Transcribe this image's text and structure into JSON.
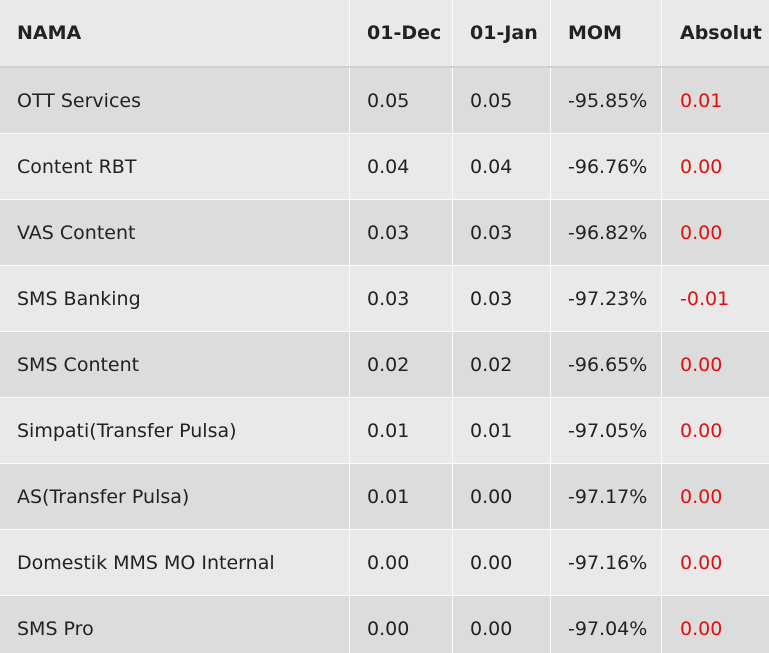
{
  "table": {
    "headers": [
      "NAMA",
      "01-Dec",
      "01-Jan",
      "MOM",
      "Absolut"
    ],
    "rows": [
      {
        "nama": "OTT Services",
        "dec": "0.05",
        "jan": "0.05",
        "mom": "-95.85%",
        "absolut": "0.01"
      },
      {
        "nama": "Content RBT",
        "dec": "0.04",
        "jan": "0.04",
        "mom": "-96.76%",
        "absolut": "0.00"
      },
      {
        "nama": "VAS Content",
        "dec": "0.03",
        "jan": "0.03",
        "mom": "-96.82%",
        "absolut": "0.00"
      },
      {
        "nama": "SMS Banking",
        "dec": "0.03",
        "jan": "0.03",
        "mom": "-97.23%",
        "absolut": "-0.01"
      },
      {
        "nama": "SMS Content",
        "dec": "0.02",
        "jan": "0.02",
        "mom": "-96.65%",
        "absolut": "0.00"
      },
      {
        "nama": "Simpati(Transfer Pulsa)",
        "dec": "0.01",
        "jan": "0.01",
        "mom": "-97.05%",
        "absolut": "0.00"
      },
      {
        "nama": "AS(Transfer Pulsa)",
        "dec": "0.01",
        "jan": "0.00",
        "mom": "-97.17%",
        "absolut": "0.00"
      },
      {
        "nama": "Domestik MMS MO Internal",
        "dec": "0.00",
        "jan": "0.00",
        "mom": "-97.16%",
        "absolut": "0.00"
      },
      {
        "nama": "SMS Pro",
        "dec": "0.00",
        "jan": "0.00",
        "mom": "-97.04%",
        "absolut": "0.00"
      }
    ]
  },
  "colors": {
    "header_bg": "#e9e9e9",
    "row_odd_bg": "#dcdcdc",
    "row_even_bg": "#e9e9e9",
    "text": "#222222",
    "absolut_text": "#e01010"
  }
}
